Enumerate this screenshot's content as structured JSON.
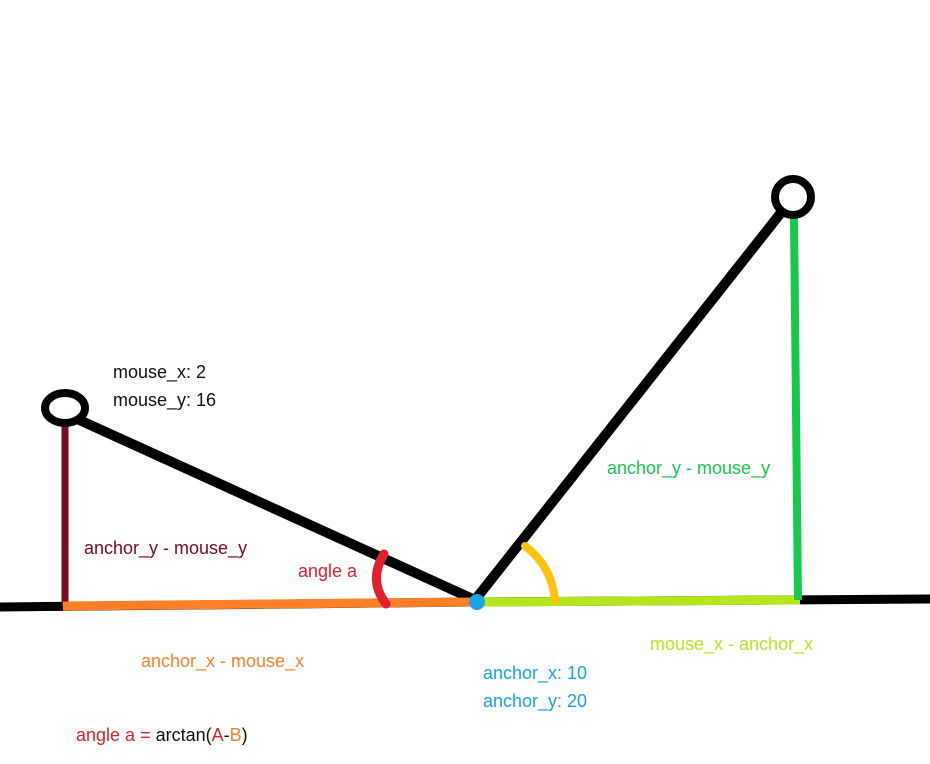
{
  "labels": {
    "mouse_x": "mouse_x: 2",
    "mouse_y": "mouse_y: 16",
    "left_vertical": "anchor_y - mouse_y",
    "angle_a": "angle a",
    "left_horizontal": "anchor_x - mouse_x",
    "anchor_x": "anchor_x: 10",
    "anchor_y": "anchor_y: 20",
    "right_vertical": "anchor_y - mouse_y",
    "right_horizontal": "mouse_x - anchor_x"
  },
  "formula": {
    "lhs": "angle a",
    "eq": " = ",
    "fn_open": "arctan(",
    "a": "A",
    "minus": "-",
    "b": "B",
    "close": ")"
  },
  "colors": {
    "black": "#000000",
    "dark_red": "#7a0a22",
    "orange": "#ff7f27",
    "red": "#e0202a",
    "blue": "#1aa3e8",
    "yellow": "#ffc20e",
    "lime": "#b5e61d",
    "green": "#16c94a"
  }
}
